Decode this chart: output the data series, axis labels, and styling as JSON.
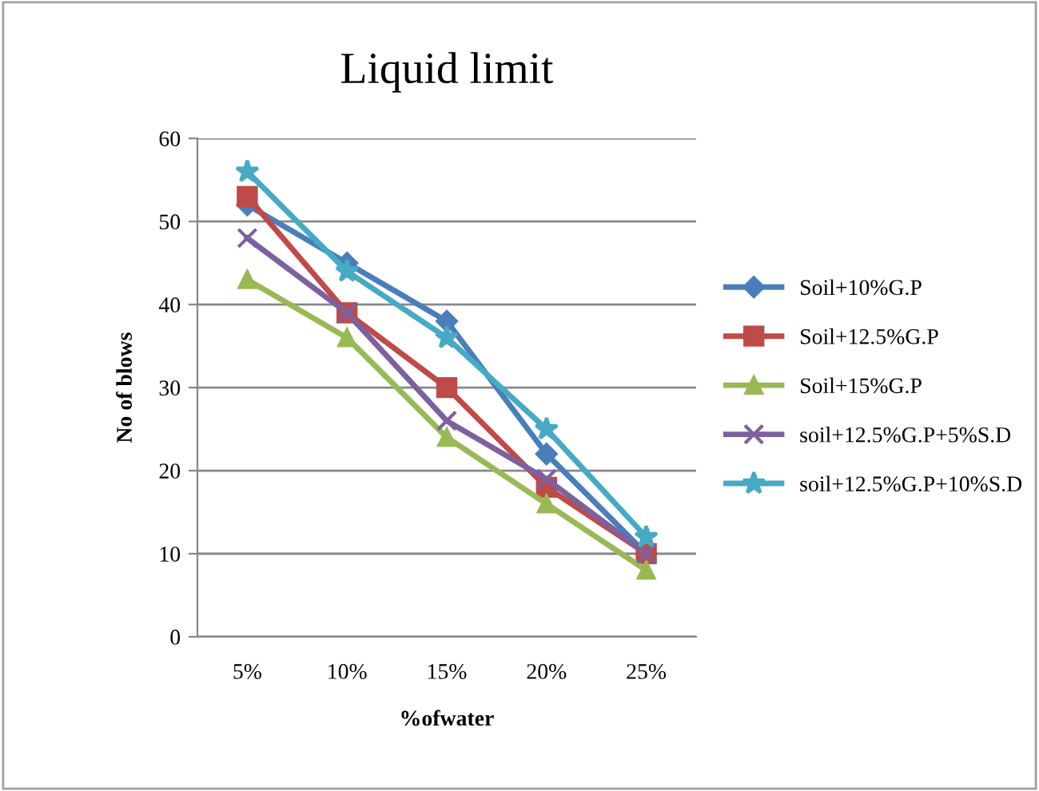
{
  "chart_data": {
    "type": "line",
    "title": "Liquid limit",
    "xlabel": "%ofwater",
    "ylabel": "No of blows",
    "categories": [
      "5%",
      "10%",
      "15%",
      "20%",
      "25%"
    ],
    "series": [
      {
        "name": "Soil+10%G.P",
        "color": "#4a7ebb",
        "marker": "diamond",
        "values": [
          52,
          45,
          38,
          22,
          10
        ]
      },
      {
        "name": "Soil+12.5%G.P",
        "color": "#be4b48",
        "marker": "square",
        "values": [
          53,
          39,
          30,
          18,
          10
        ]
      },
      {
        "name": "Soil+15%G.P",
        "color": "#98b954",
        "marker": "triangle",
        "values": [
          43,
          36,
          24,
          16,
          8
        ]
      },
      {
        "name": "soil+12.5%G.P+5%S.D",
        "color": "#7d60a0",
        "marker": "cross",
        "values": [
          48,
          39,
          26,
          19,
          10
        ]
      },
      {
        "name": "soil+12.5%G.P+10%S.D",
        "color": "#46aac5",
        "marker": "star",
        "values": [
          56,
          44,
          36,
          25,
          12
        ]
      }
    ],
    "ylim": [
      0,
      60
    ],
    "yticks": [
      0,
      10,
      20,
      30,
      40,
      50,
      60
    ],
    "grid": "y",
    "legend": "right"
  }
}
